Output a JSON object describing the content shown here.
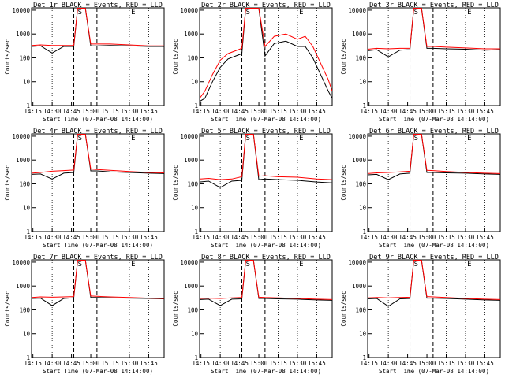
{
  "common": {
    "xticks": [
      "14:15",
      "14:30",
      "14:45",
      "15:00",
      "15:15",
      "15:30",
      "15:45"
    ],
    "yticks": [
      "1",
      "10",
      "100",
      "1000",
      "10000"
    ],
    "ylabel": "Counts/sec",
    "xlabel": "Start Time (07-Mar-08 14:14:00)",
    "marker_s": "S",
    "marker_e": "E"
  },
  "chart_data": [
    {
      "type": "line",
      "title": "Det 1r BLACK = Events, RED = LLD",
      "xlabel": "Start Time (07-Mar-08 14:14:00)",
      "ylabel": "Counts/sec",
      "ylog": true,
      "ylim": [
        1,
        10000
      ],
      "x": [
        14.233,
        14.35,
        14.5,
        14.65,
        14.78,
        14.83,
        14.86,
        14.93,
        15.0,
        15.08,
        15.25,
        15.5,
        15.75,
        15.95
      ],
      "series": [
        {
          "color": "#000000",
          "values": [
            300,
            320,
            160,
            300,
            300,
            12000,
            12000,
            12000,
            320,
            320,
            330,
            320,
            300,
            300
          ]
        },
        {
          "color": "#ff0000",
          "values": [
            330,
            350,
            330,
            330,
            330,
            12000,
            12000,
            12000,
            380,
            380,
            380,
            350,
            320,
            320
          ]
        }
      ]
    },
    {
      "type": "line",
      "title": "Det 2r BLACK = Events, RED = LLD",
      "xlabel": "Start Time (07-Mar-08 14:14:00)",
      "ylabel": "Counts/sec",
      "ylog": true,
      "ylim": [
        1,
        10000
      ],
      "x": [
        14.233,
        14.3,
        14.4,
        14.5,
        14.6,
        14.7,
        14.78,
        14.83,
        14.86,
        14.93,
        15.0,
        15.08,
        15.2,
        15.35,
        15.5,
        15.6,
        15.7,
        15.8,
        15.9,
        15.95
      ],
      "series": [
        {
          "color": "#000000",
          "values": [
            1.5,
            2,
            10,
            40,
            90,
            120,
            150,
            12000,
            12000,
            12000,
            12000,
            120,
            400,
            500,
            300,
            300,
            100,
            20,
            4,
            2
          ]
        },
        {
          "color": "#ff0000",
          "values": [
            2,
            4,
            20,
            80,
            150,
            200,
            250,
            12000,
            12000,
            12000,
            12000,
            300,
            800,
            1000,
            600,
            800,
            300,
            60,
            12,
            4
          ]
        }
      ]
    },
    {
      "type": "line",
      "title": "Det 3r BLACK = Events, RED = LLD",
      "xlabel": "Start Time (07-Mar-08 14:14:00)",
      "ylabel": "Counts/sec",
      "ylog": true,
      "ylim": [
        1,
        10000
      ],
      "x": [
        14.233,
        14.35,
        14.5,
        14.65,
        14.78,
        14.83,
        14.86,
        14.93,
        15.0,
        15.08,
        15.25,
        15.5,
        15.75,
        15.95
      ],
      "series": [
        {
          "color": "#000000",
          "values": [
            200,
            220,
            110,
            210,
            220,
            12000,
            12000,
            12000,
            250,
            250,
            240,
            230,
            210,
            220
          ]
        },
        {
          "color": "#ff0000",
          "values": [
            230,
            250,
            240,
            250,
            250,
            12000,
            12000,
            12000,
            300,
            300,
            280,
            260,
            240,
            240
          ]
        }
      ]
    },
    {
      "type": "line",
      "title": "Det 4r BLACK = Events, RED = LLD",
      "xlabel": "Start Time (07-Mar-08 14:14:00)",
      "ylabel": "Counts/sec",
      "ylog": true,
      "ylim": [
        1,
        10000
      ],
      "x": [
        14.233,
        14.35,
        14.5,
        14.65,
        14.78,
        14.83,
        14.86,
        14.93,
        15.0,
        15.08,
        15.25,
        15.5,
        15.75,
        15.95
      ],
      "series": [
        {
          "color": "#000000",
          "values": [
            250,
            260,
            160,
            280,
            300,
            12000,
            12000,
            12000,
            350,
            350,
            320,
            300,
            280,
            270
          ]
        },
        {
          "color": "#ff0000",
          "values": [
            280,
            300,
            340,
            360,
            380,
            12000,
            12000,
            12000,
            420,
            400,
            370,
            330,
            300,
            290
          ]
        }
      ]
    },
    {
      "type": "line",
      "title": "Det 5r BLACK = Events, RED = LLD",
      "xlabel": "Start Time (07-Mar-08 14:14:00)",
      "ylabel": "Counts/sec",
      "ylog": true,
      "ylim": [
        1,
        10000
      ],
      "x": [
        14.233,
        14.35,
        14.5,
        14.65,
        14.78,
        14.83,
        14.86,
        14.93,
        15.0,
        15.08,
        15.25,
        15.5,
        15.75,
        15.95
      ],
      "series": [
        {
          "color": "#000000",
          "values": [
            120,
            130,
            70,
            130,
            140,
            12000,
            12000,
            12000,
            150,
            160,
            150,
            140,
            120,
            110
          ]
        },
        {
          "color": "#ff0000",
          "values": [
            160,
            170,
            150,
            160,
            200,
            12000,
            12000,
            12000,
            210,
            220,
            200,
            190,
            160,
            150
          ]
        }
      ]
    },
    {
      "type": "line",
      "title": "Det 6r BLACK = Events, RED = LLD",
      "xlabel": "Start Time (07-Mar-08 14:14:00)",
      "ylabel": "Counts/sec",
      "ylog": true,
      "ylim": [
        1,
        10000
      ],
      "x": [
        14.233,
        14.35,
        14.5,
        14.65,
        14.78,
        14.83,
        14.86,
        14.93,
        15.0,
        15.08,
        15.25,
        15.5,
        15.75,
        15.95
      ],
      "series": [
        {
          "color": "#000000",
          "values": [
            240,
            250,
            150,
            260,
            280,
            12000,
            12000,
            12000,
            300,
            300,
            290,
            280,
            260,
            250
          ]
        },
        {
          "color": "#ff0000",
          "values": [
            270,
            290,
            300,
            320,
            340,
            12000,
            12000,
            12000,
            370,
            360,
            330,
            300,
            280,
            270
          ]
        }
      ]
    },
    {
      "type": "line",
      "title": "Det 7r BLACK = Events, RED = LLD",
      "xlabel": "Start Time (07-Mar-08 14:14:00)",
      "ylabel": "Counts/sec",
      "ylog": true,
      "ylim": [
        1,
        10000
      ],
      "x": [
        14.233,
        14.35,
        14.5,
        14.65,
        14.78,
        14.83,
        14.86,
        14.93,
        15.0,
        15.08,
        15.25,
        15.5,
        15.75,
        15.95
      ],
      "series": [
        {
          "color": "#000000",
          "values": [
            300,
            310,
            150,
            300,
            320,
            12000,
            12000,
            12000,
            330,
            330,
            320,
            310,
            300,
            290
          ]
        },
        {
          "color": "#ff0000",
          "values": [
            330,
            350,
            340,
            350,
            360,
            12000,
            12000,
            12000,
            380,
            370,
            350,
            330,
            310,
            300
          ]
        }
      ]
    },
    {
      "type": "line",
      "title": "Det 8r BLACK = Events, RED = LLD",
      "xlabel": "Start Time (07-Mar-08 14:14:00)",
      "ylabel": "Counts/sec",
      "ylog": true,
      "ylim": [
        1,
        10000
      ],
      "x": [
        14.233,
        14.35,
        14.5,
        14.65,
        14.78,
        14.83,
        14.86,
        14.93,
        15.0,
        15.08,
        15.25,
        15.5,
        15.75,
        15.95
      ],
      "series": [
        {
          "color": "#000000",
          "values": [
            270,
            280,
            150,
            280,
            290,
            12000,
            12000,
            12000,
            300,
            300,
            290,
            280,
            260,
            250
          ]
        },
        {
          "color": "#ff0000",
          "values": [
            300,
            310,
            300,
            320,
            330,
            12000,
            12000,
            12000,
            340,
            330,
            320,
            300,
            280,
            270
          ]
        }
      ]
    },
    {
      "type": "line",
      "title": "Det 9r BLACK = Events, RED = LLD",
      "xlabel": "Start Time (07-Mar-08 14:14:00)",
      "ylabel": "Counts/sec",
      "ylog": true,
      "ylim": [
        1,
        10000
      ],
      "x": [
        14.233,
        14.35,
        14.5,
        14.65,
        14.78,
        14.83,
        14.86,
        14.93,
        15.0,
        15.08,
        15.25,
        15.5,
        15.75,
        15.95
      ],
      "series": [
        {
          "color": "#000000",
          "values": [
            290,
            300,
            140,
            290,
            300,
            12000,
            12000,
            12000,
            310,
            310,
            300,
            280,
            260,
            250
          ]
        },
        {
          "color": "#ff0000",
          "values": [
            320,
            330,
            320,
            330,
            340,
            12000,
            12000,
            12000,
            360,
            350,
            330,
            300,
            280,
            270
          ]
        }
      ]
    }
  ]
}
